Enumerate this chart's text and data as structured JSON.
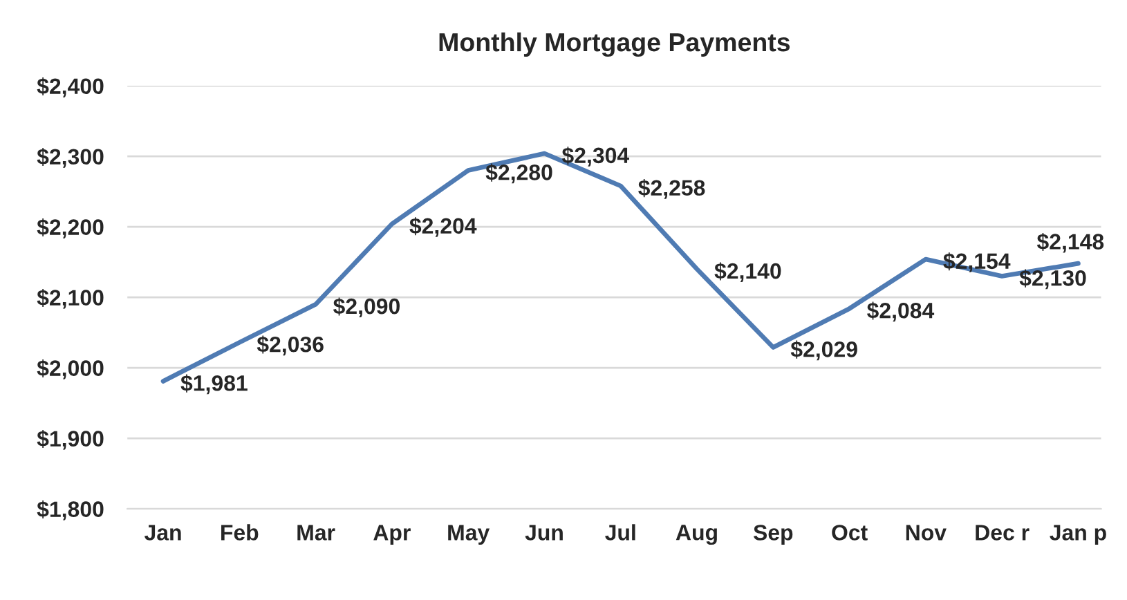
{
  "chart_data": {
    "type": "line",
    "title": "Monthly Mortgage Payments",
    "categories": [
      "Jan",
      "Feb",
      "Mar",
      "Apr",
      "May",
      "Jun",
      "Jul",
      "Aug",
      "Sep",
      "Oct",
      "Nov",
      "Dec r",
      "Jan p"
    ],
    "series": [
      {
        "color": "#4f7bb3",
        "values": [
          1981,
          2036,
          2090,
          2204,
          2280,
          2304,
          2258,
          2140,
          2029,
          2084,
          2154,
          2130,
          2148
        ],
        "value_labels": [
          "$1,981",
          "$2,036",
          "$2,090",
          "$2,204",
          "$2,280",
          "$2,304",
          "$2,258",
          "$2,140",
          "$2,029",
          "$2,084",
          "$2,154",
          "$2,130",
          "$2,148"
        ]
      }
    ],
    "ylim": [
      1800,
      2400
    ],
    "yticks": [
      {
        "value": 1800,
        "label": "$1,800"
      },
      {
        "value": 1900,
        "label": "$1,900"
      },
      {
        "value": 2000,
        "label": "$2,000"
      },
      {
        "value": 2100,
        "label": "$2,100"
      },
      {
        "value": 2200,
        "label": "$2,200"
      },
      {
        "value": 2300,
        "label": "$2,300"
      },
      {
        "value": 2400,
        "label": "$2,400"
      }
    ],
    "grid": "y",
    "marker": "none",
    "line_style": "solid"
  }
}
